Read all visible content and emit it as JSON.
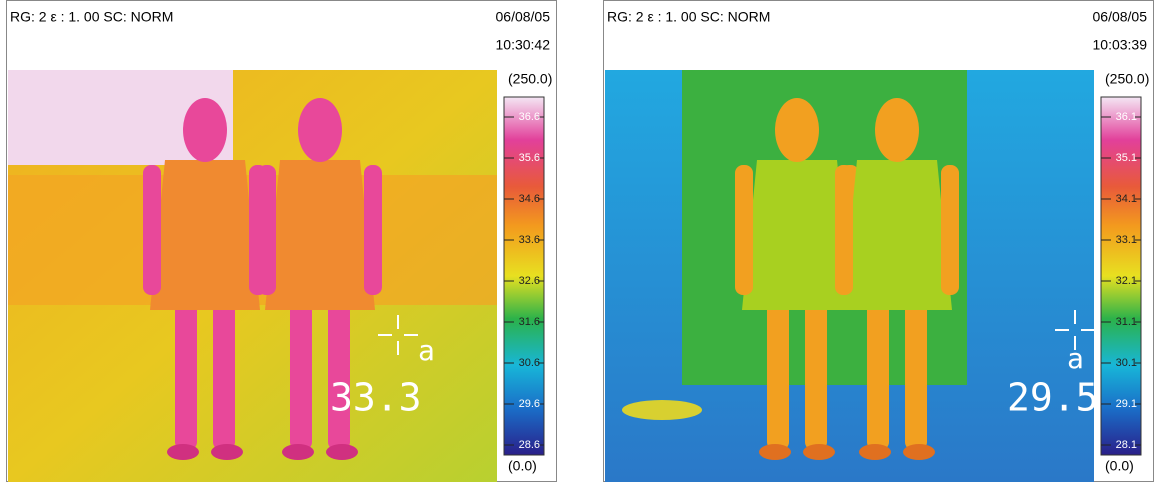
{
  "panels": [
    {
      "header": "RG: 2   ε : 1. 00   SC: NORM",
      "date": "06/08/05",
      "time": "10:30:42",
      "scale_max": "(250.0)",
      "scale_min": "(0.0)",
      "scale_labels": [
        "36.6",
        "35.6",
        "34.6",
        "33.6",
        "32.6",
        "31.6",
        "30.6",
        "29.6",
        "28.6"
      ],
      "marker": "a",
      "reading": "33.3"
    },
    {
      "header": "RG: 2   ε : 1. 00   SC: NORM",
      "date": "06/08/05",
      "time": "10:03:39",
      "scale_max": "(250.0)",
      "scale_min": "(0.0)",
      "scale_labels": [
        "36.1",
        "35.1",
        "34.1",
        "33.1",
        "32.1",
        "31.1",
        "30.1",
        "29.1",
        "28.1"
      ],
      "marker": "a",
      "reading": "29.5"
    }
  ]
}
